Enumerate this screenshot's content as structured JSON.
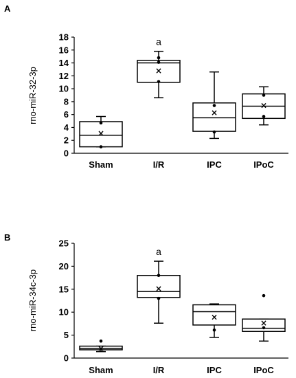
{
  "chart_data": [
    {
      "type": "box",
      "panel_label": "A",
      "ylabel": "rno-miR-32-3p",
      "ylim": [
        0,
        18
      ],
      "yticks": [
        0,
        2,
        4,
        6,
        8,
        10,
        12,
        14,
        16,
        18
      ],
      "categories": [
        "Sham",
        "I/R",
        "IPC",
        "IPoC"
      ],
      "boxes": [
        {
          "whisker_low": 1.0,
          "q1": 1.0,
          "median": 2.8,
          "q3": 4.9,
          "whisker_high": 5.7,
          "mean": 3.1,
          "points": [
            1.0,
            4.7
          ]
        },
        {
          "whisker_low": 8.6,
          "q1": 11.0,
          "median": 14.0,
          "q3": 14.4,
          "whisker_high": 15.8,
          "mean": 12.8,
          "points": [
            11.1,
            14.1,
            14.8
          ]
        },
        {
          "whisker_low": 2.3,
          "q1": 3.4,
          "median": 5.5,
          "q3": 7.8,
          "whisker_high": 12.6,
          "mean": 6.3,
          "points": [
            3.3,
            7.4
          ]
        },
        {
          "whisker_low": 4.4,
          "q1": 5.4,
          "median": 7.3,
          "q3": 9.2,
          "whisker_high": 10.3,
          "mean": 7.4,
          "points": [
            5.7,
            9.0
          ]
        }
      ],
      "annotations": [
        {
          "category": "I/R",
          "text": "a"
        }
      ]
    },
    {
      "type": "box",
      "panel_label": "B",
      "ylabel": "rno-miR-34c-3p",
      "ylim": [
        0,
        25
      ],
      "yticks": [
        0,
        5,
        10,
        15,
        20,
        25
      ],
      "categories": [
        "Sham",
        "I/R",
        "IPC",
        "IPoC"
      ],
      "boxes": [
        {
          "whisker_low": 1.4,
          "q1": 1.8,
          "median": 2.1,
          "q3": 2.6,
          "whisker_high": 2.6,
          "mean": 2.1,
          "points": [
            3.7
          ],
          "outliers": [
            3.7
          ]
        },
        {
          "whisker_low": 7.6,
          "q1": 13.2,
          "median": 14.5,
          "q3": 18.0,
          "whisker_high": 21.1,
          "mean": 15.1,
          "points": [
            13.0,
            18.0
          ]
        },
        {
          "whisker_low": 4.5,
          "q1": 7.2,
          "median": 10.1,
          "q3": 11.6,
          "whisker_high": 11.8,
          "mean": 8.9,
          "points": [
            6.1
          ]
        },
        {
          "whisker_low": 3.7,
          "q1": 5.8,
          "median": 6.5,
          "q3": 8.5,
          "whisker_high": 8.5,
          "mean": 7.6,
          "points": [
            6.6,
            13.6
          ],
          "outliers": [
            13.6
          ]
        }
      ],
      "annotations": [
        {
          "category": "I/R",
          "text": "a"
        }
      ]
    }
  ]
}
